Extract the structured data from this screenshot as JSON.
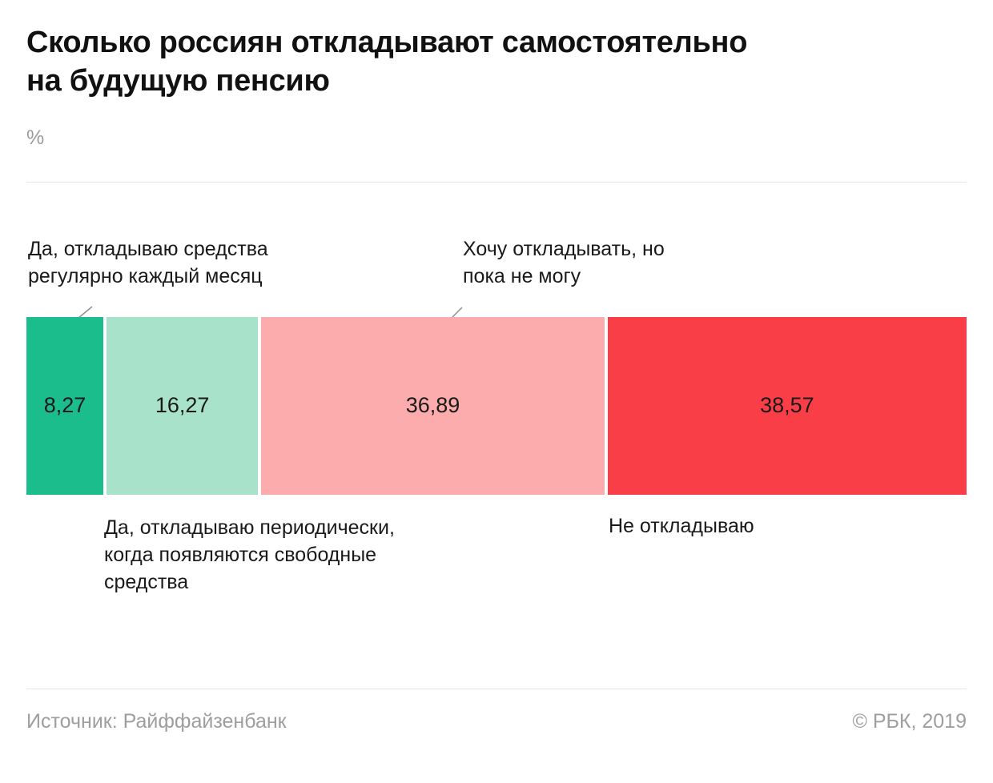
{
  "header": {
    "title_line1": "Сколько россиян откладывают самостоятельно",
    "title_line2": "на будущую пенсию",
    "unit": "%"
  },
  "chart_data": {
    "type": "bar",
    "orientation": "horizontal-stacked",
    "title": "Сколько россиян откладывают самостоятельно на будущую пенсию",
    "unit": "%",
    "total": 100,
    "legend_position": "annotations",
    "segments": [
      {
        "id": "regular",
        "label": "Да, откладываю средства регулярно каждый месяц",
        "value": 8.27,
        "display": "8,27",
        "color": "#1cbd8d"
      },
      {
        "id": "periodic",
        "label": "Да, откладываю периодически, когда появляются свободные средства",
        "value": 16.27,
        "display": "16,27",
        "color": "#a9e2cb"
      },
      {
        "id": "want",
        "label": "Хочу откладывать, но пока не могу",
        "value": 36.89,
        "display": "36,89",
        "color": "#fcacac"
      },
      {
        "id": "none",
        "label": "Не откладываю",
        "value": 38.57,
        "display": "38,57",
        "color": "#fa3e47"
      }
    ]
  },
  "footer": {
    "source": "Источник: Райффайзенбанк",
    "copyright": "© РБК, 2019"
  }
}
